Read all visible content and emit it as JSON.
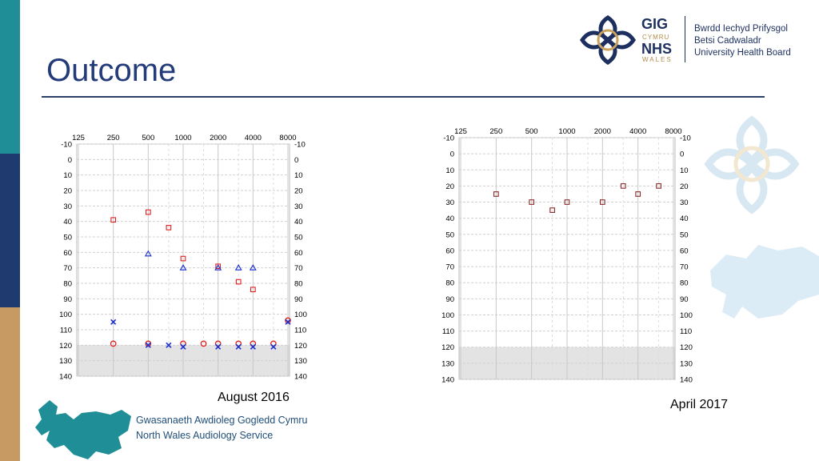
{
  "slide": {
    "title": "Outcome",
    "caption_left": "August 2016",
    "caption_right": "April 2017",
    "footer_line1": "Gwasanaeth Awdioleg Gogledd Cymru",
    "footer_line2": "North Wales Audiology Service"
  },
  "logo": {
    "gig": "GIG",
    "cymru": "CYMRU",
    "nhs": "NHS",
    "wales": "WALES",
    "line1": "Bwrdd Iechyd Prifysgol",
    "line2": "Betsi Cadwaladr",
    "line3": "University Health Board"
  },
  "colors": {
    "teal": "#1f8e96",
    "navy": "#1e3a6e",
    "tan": "#c79a63",
    "right_ear": "#e02020",
    "left_ear": "#1a2fd0"
  },
  "chart_data": [
    {
      "type": "scatter",
      "chart": "audiogram",
      "x_ticks": [
        "125",
        "250",
        "500",
        "1000",
        "2000",
        "4000",
        "8000"
      ],
      "y_ticks": [
        "-10",
        "0",
        "10",
        "20",
        "30",
        "40",
        "50",
        "60",
        "70",
        "80",
        "90",
        "100",
        "110",
        "120",
        "130",
        "140"
      ],
      "ylim": [
        -10,
        140
      ],
      "y_inverted": true,
      "shaded_region": [
        120,
        140
      ],
      "series": [
        {
          "marker": "square",
          "color": "#e02020",
          "points": [
            [
              250,
              39
            ],
            [
              500,
              34
            ],
            [
              750,
              44
            ],
            [
              1000,
              64
            ],
            [
              2000,
              69
            ],
            [
              3000,
              79
            ],
            [
              4000,
              84
            ]
          ]
        },
        {
          "marker": "triangle",
          "color": "#1a2fd0",
          "points": [
            [
              500,
              61
            ],
            [
              1000,
              70
            ],
            [
              2000,
              70
            ],
            [
              3000,
              70
            ],
            [
              4000,
              70
            ]
          ]
        },
        {
          "marker": "circle",
          "color": "#e02020",
          "points": [
            [
              250,
              119
            ],
            [
              500,
              119
            ],
            [
              1000,
              119
            ],
            [
              1500,
              119
            ],
            [
              2000,
              119
            ],
            [
              3000,
              119
            ],
            [
              4000,
              119
            ],
            [
              6000,
              119
            ],
            [
              8000,
              104
            ]
          ]
        },
        {
          "marker": "cross",
          "color": "#1a2fd0",
          "points": [
            [
              250,
              105
            ],
            [
              500,
              120
            ],
            [
              750,
              120
            ],
            [
              1000,
              121
            ],
            [
              2000,
              121
            ],
            [
              3000,
              121
            ],
            [
              4000,
              121
            ],
            [
              6000,
              121
            ],
            [
              8000,
              105
            ]
          ]
        }
      ]
    },
    {
      "type": "scatter",
      "chart": "audiogram",
      "x_ticks": [
        "125",
        "250",
        "500",
        "1000",
        "2000",
        "4000",
        "8000"
      ],
      "y_ticks": [
        "-10",
        "0",
        "10",
        "20",
        "30",
        "40",
        "50",
        "60",
        "70",
        "80",
        "90",
        "100",
        "110",
        "120",
        "130",
        "140"
      ],
      "ylim": [
        -10,
        140
      ],
      "y_inverted": true,
      "shaded_region": [
        120,
        140
      ],
      "series": [
        {
          "marker": "square",
          "color": "#8b2a2a",
          "points": [
            [
              250,
              25
            ],
            [
              500,
              30
            ],
            [
              750,
              35
            ],
            [
              1000,
              30
            ],
            [
              2000,
              30
            ],
            [
              3000,
              20
            ],
            [
              4000,
              25
            ],
            [
              6000,
              20
            ]
          ]
        }
      ]
    }
  ]
}
